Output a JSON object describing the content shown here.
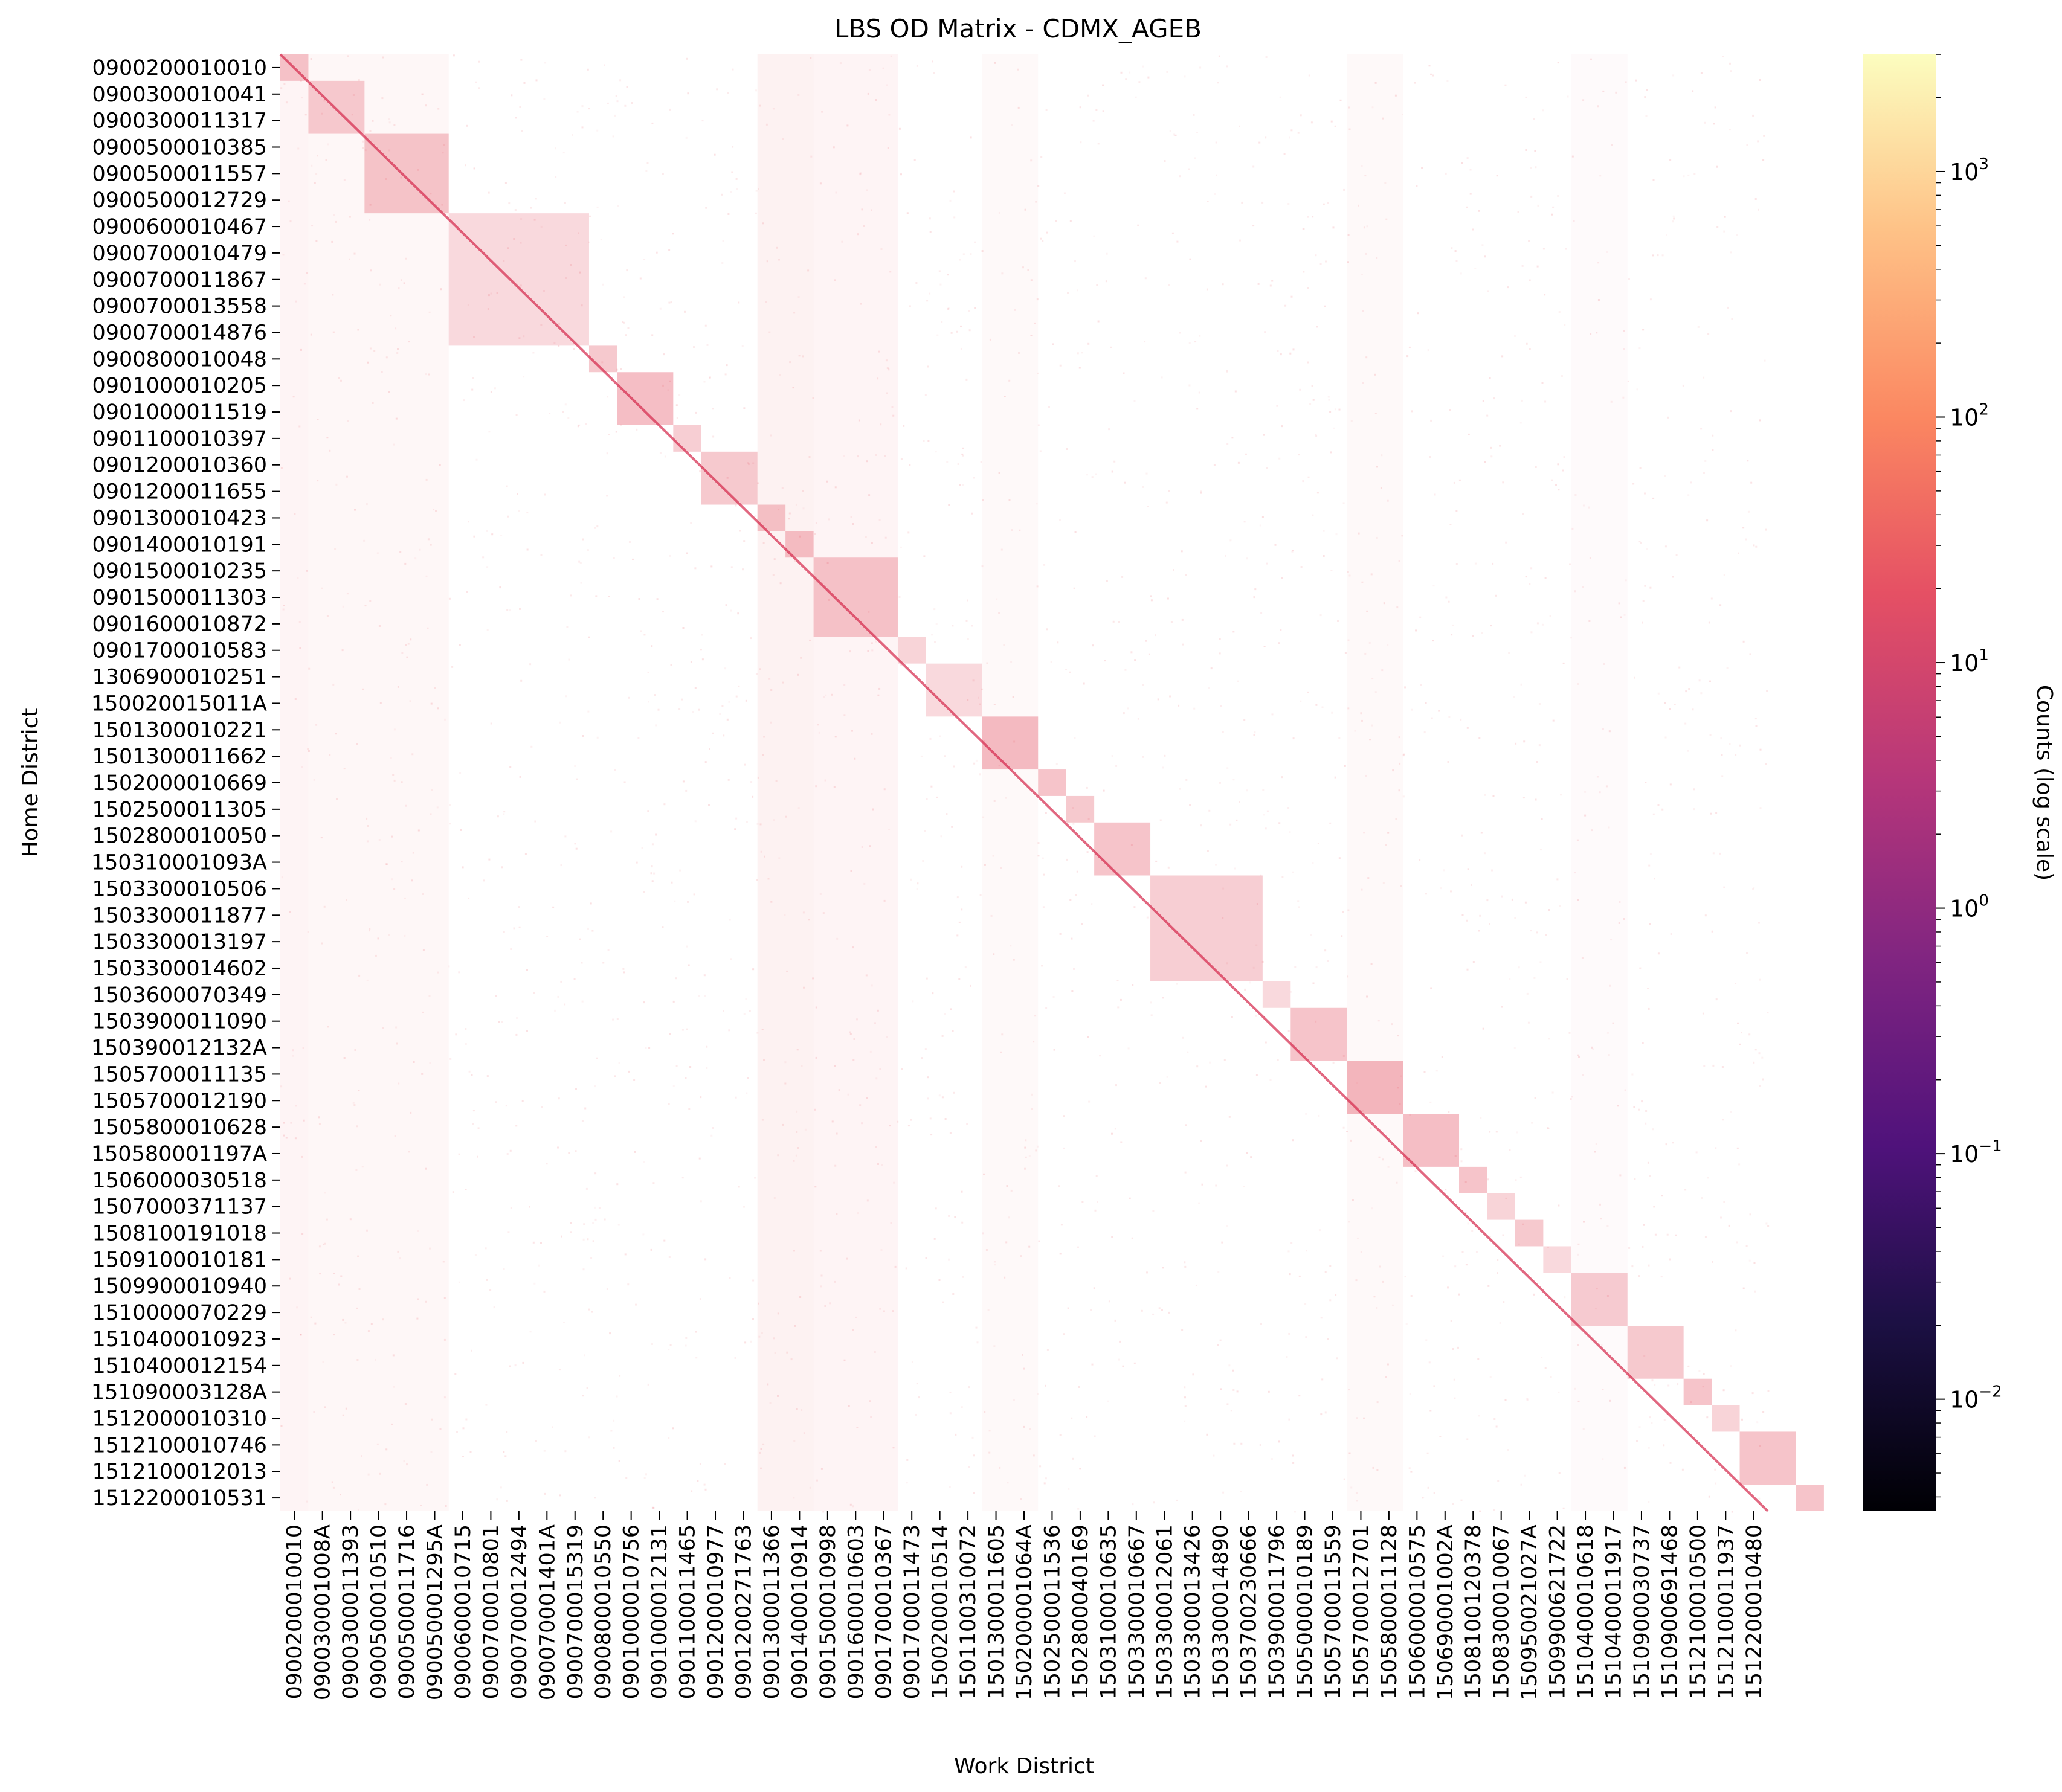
{
  "chart_data": {
    "type": "heatmap",
    "title": "LBS OD Matrix - CDMX_AGEB",
    "xlabel": "Work District",
    "ylabel": "Home District",
    "y_tick_labels": [
      "0900200010010",
      "0900300010041",
      "0900300011317",
      "0900500010385",
      "0900500011557",
      "0900500012729",
      "0900600010467",
      "0900700010479",
      "0900700011867",
      "0900700013558",
      "0900700014876",
      "0900800010048",
      "0901000010205",
      "0901000011519",
      "0901100010397",
      "0901200010360",
      "0901200011655",
      "0901300010423",
      "0901400010191",
      "0901500010235",
      "0901500011303",
      "0901600010872",
      "0901700010583",
      "1306900010251",
      "150020015011A",
      "1501300010221",
      "1501300011662",
      "1502000010669",
      "1502500011305",
      "1502800010050",
      "150310001093A",
      "1503300010506",
      "1503300011877",
      "1503300013197",
      "1503300014602",
      "1503600070349",
      "1503900011090",
      "150390012132A",
      "1505700011135",
      "1505700012190",
      "1505800010628",
      "150580001197A",
      "1506000030518",
      "1507000371137",
      "1508100191018",
      "1509100010181",
      "1509900010940",
      "1510000070229",
      "1510400010923",
      "1510400012154",
      "151090003128A",
      "1512000010310",
      "1512100010746",
      "1512100012013",
      "1512200010531"
    ],
    "x_tick_labels": [
      "0900200010010",
      "090030001008A",
      "0900300011393",
      "0900500010510",
      "0900500011716",
      "090050001295A",
      "0900600010715",
      "0900700010801",
      "0900700012494",
      "090070001401A",
      "0900700015319",
      "0900800010550",
      "0901000010756",
      "0901000012131",
      "0901100011465",
      "0901200010977",
      "0901200271763",
      "0901300011366",
      "0901400010914",
      "0901500010998",
      "0901600010603",
      "0901700010367",
      "0901700011473",
      "1500200010514",
      "1501100310072",
      "1501300011605",
      "150200001064A",
      "1502500011536",
      "1502800040169",
      "1503100010635",
      "1503300010667",
      "1503300012061",
      "1503300013426",
      "1503300014890",
      "1503700230666",
      "1503900011796",
      "1505000010189",
      "1505700011559",
      "1505700012701",
      "1505800011128",
      "1506000010575",
      "150690001002A",
      "1508100120378",
      "1508300010067",
      "150950021027A",
      "1509900621722",
      "1510400010618",
      "1510400011917",
      "1510900030737",
      "1510900691468",
      "1512100010500",
      "1512100011937",
      "1512200010480"
    ],
    "colorbar": {
      "label": "Counts (log scale)",
      "scale": "log",
      "colormap": "magma",
      "range": [
        0.0035,
        3000
      ],
      "ticks": [
        {
          "base": "10",
          "exp": "3",
          "value": 1000
        },
        {
          "base": "10",
          "exp": "2",
          "value": 100
        },
        {
          "base": "10",
          "exp": "1",
          "value": 10
        },
        {
          "base": "10",
          "exp": "0",
          "value": 1
        },
        {
          "base": "10",
          "exp": "−1",
          "value": 0.1
        },
        {
          "base": "10",
          "exp": "−2",
          "value": 0.01
        }
      ]
    },
    "description_of_values": "Sparse origin-destination counts; strongest counts along the diagonal with dense blocks for districts within the same municipality.",
    "diagonal_blocks": [
      {
        "home_range": [
          0,
          1
        ],
        "work_range": [
          0,
          1
        ],
        "intensity": 0.5
      },
      {
        "home_range": [
          1,
          3
        ],
        "work_range": [
          1,
          3
        ],
        "intensity": 0.45
      },
      {
        "home_range": [
          3,
          6
        ],
        "work_range": [
          3,
          6
        ],
        "intensity": 0.5
      },
      {
        "home_range": [
          6,
          11
        ],
        "work_range": [
          6,
          11
        ],
        "intensity": 0.35
      },
      {
        "home_range": [
          11,
          12
        ],
        "work_range": [
          11,
          12
        ],
        "intensity": 0.5
      },
      {
        "home_range": [
          12,
          14
        ],
        "work_range": [
          12,
          14
        ],
        "intensity": 0.6
      },
      {
        "home_range": [
          14,
          15
        ],
        "work_range": [
          14,
          15
        ],
        "intensity": 0.45
      },
      {
        "home_range": [
          15,
          17
        ],
        "work_range": [
          15,
          17
        ],
        "intensity": 0.5
      },
      {
        "home_range": [
          17,
          18
        ],
        "work_range": [
          17,
          18
        ],
        "intensity": 0.5
      },
      {
        "home_range": [
          18,
          19
        ],
        "work_range": [
          18,
          19
        ],
        "intensity": 0.55
      },
      {
        "home_range": [
          19,
          22
        ],
        "work_range": [
          19,
          22
        ],
        "intensity": 0.5
      },
      {
        "home_range": [
          22,
          23
        ],
        "work_range": [
          22,
          23
        ],
        "intensity": 0.4
      },
      {
        "home_range": [
          23,
          25
        ],
        "work_range": [
          23,
          25
        ],
        "intensity": 0.35
      },
      {
        "home_range": [
          25,
          27
        ],
        "work_range": [
          25,
          27
        ],
        "intensity": 0.6
      },
      {
        "home_range": [
          27,
          28
        ],
        "work_range": [
          27,
          28
        ],
        "intensity": 0.55
      },
      {
        "home_range": [
          28,
          29
        ],
        "work_range": [
          28,
          29
        ],
        "intensity": 0.5
      },
      {
        "home_range": [
          29,
          31
        ],
        "work_range": [
          29,
          31
        ],
        "intensity": 0.55
      },
      {
        "home_range": [
          31,
          35
        ],
        "work_range": [
          31,
          35
        ],
        "intensity": 0.45
      },
      {
        "home_range": [
          35,
          36
        ],
        "work_range": [
          35,
          36
        ],
        "intensity": 0.35
      },
      {
        "home_range": [
          36,
          38
        ],
        "work_range": [
          36,
          38
        ],
        "intensity": 0.55
      },
      {
        "home_range": [
          38,
          40
        ],
        "work_range": [
          38,
          40
        ],
        "intensity": 0.65
      },
      {
        "home_range": [
          40,
          42
        ],
        "work_range": [
          40,
          42
        ],
        "intensity": 0.6
      },
      {
        "home_range": [
          42,
          43
        ],
        "work_range": [
          42,
          43
        ],
        "intensity": 0.55
      },
      {
        "home_range": [
          43,
          44
        ],
        "work_range": [
          43,
          44
        ],
        "intensity": 0.4
      },
      {
        "home_range": [
          44,
          45
        ],
        "work_range": [
          44,
          45
        ],
        "intensity": 0.5
      },
      {
        "home_range": [
          45,
          46
        ],
        "work_range": [
          45,
          46
        ],
        "intensity": 0.35
      },
      {
        "home_range": [
          46,
          48
        ],
        "work_range": [
          46,
          48
        ],
        "intensity": 0.45
      },
      {
        "home_range": [
          48,
          50
        ],
        "work_range": [
          48,
          50
        ],
        "intensity": 0.5
      },
      {
        "home_range": [
          50,
          51
        ],
        "work_range": [
          50,
          51
        ],
        "intensity": 0.55
      },
      {
        "home_range": [
          51,
          52
        ],
        "work_range": [
          51,
          52
        ],
        "intensity": 0.4
      },
      {
        "home_range": [
          52,
          54
        ],
        "work_range": [
          52,
          54
        ],
        "intensity": 0.55
      },
      {
        "home_range": [
          54,
          55
        ],
        "work_range": [
          54,
          55
        ],
        "intensity": 0.55
      }
    ],
    "off_diagonal_columns": [
      {
        "work_range": [
          0,
          1
        ],
        "intensity": 0.18
      },
      {
        "work_range": [
          1,
          3
        ],
        "intensity": 0.14
      },
      {
        "work_range": [
          3,
          6
        ],
        "intensity": 0.14
      },
      {
        "work_range": [
          17,
          19
        ],
        "intensity": 0.22
      },
      {
        "work_range": [
          19,
          22
        ],
        "intensity": 0.18
      },
      {
        "work_range": [
          25,
          27
        ],
        "intensity": 0.1
      },
      {
        "work_range": [
          38,
          40
        ],
        "intensity": 0.1
      },
      {
        "work_range": [
          46,
          48
        ],
        "intensity": 0.08
      }
    ],
    "grid": false,
    "legend": "none"
  }
}
